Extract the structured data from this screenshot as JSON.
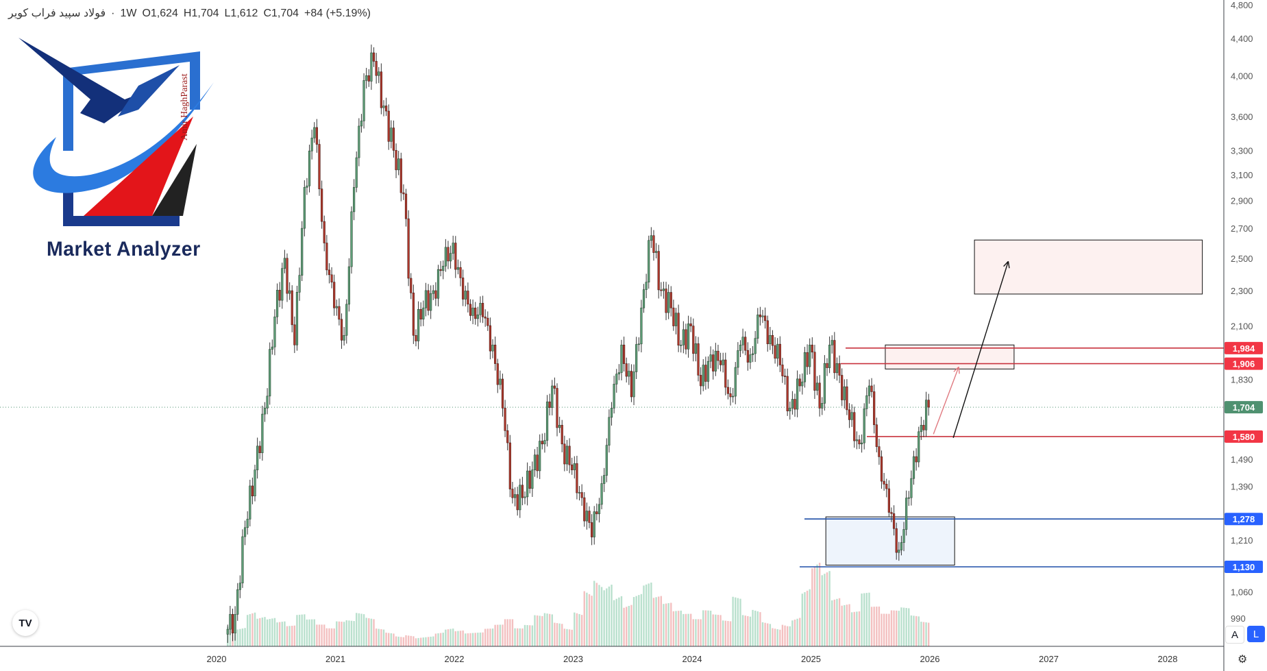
{
  "header": {
    "symbol": "فولاد سپید فراب کویر",
    "separator": "·",
    "interval": "1W",
    "open": "O1,624",
    "high": "H1,704",
    "low": "L1,612",
    "close": "C1,704",
    "change": "+84 (+5.19%)"
  },
  "logo": {
    "name": "Market Analyzer",
    "signature": "Amir HaghParast"
  },
  "tv_logo": "TV",
  "axis_buttons": {
    "auto": "A",
    "log": "L"
  },
  "settings_icon": "gear-icon",
  "colors": {
    "up": "#5e9e78",
    "down": "#b23a2e",
    "red_level": "#f23645",
    "blue_level": "#2962ff",
    "last_price": "#4f9170",
    "volume_up": "#a8d8c0",
    "volume_down": "#f0b0b0"
  },
  "chart_data": {
    "type": "candlestick",
    "scale": "log",
    "interval": "1W",
    "ylim": [
      930,
      4850
    ],
    "y_ticks": [
      "4,800",
      "4,400",
      "4,000",
      "3,600",
      "3,300",
      "3,100",
      "2,900",
      "2,700",
      "2,500",
      "2,300",
      "2,100",
      "1,830",
      "1,490",
      "1,390",
      "1,210",
      "1,060",
      "990"
    ],
    "x_ticks": [
      "2020",
      "2021",
      "2022",
      "2023",
      "2024",
      "2025",
      "2026",
      "2027",
      "2028"
    ],
    "first_open": 950,
    "monthly_closes": {
      "start": "2020-02",
      "values": [
        1000,
        1250,
        1450,
        1700,
        2150,
        2500,
        2000,
        3000,
        3500,
        2600,
        2200,
        2050,
        3000,
        3950,
        4150,
        3700,
        3300,
        2950,
        2050,
        2200,
        2300,
        2450,
        2600,
        2250,
        2200,
        2150,
        2000,
        1700,
        1350,
        1350,
        1450,
        1550,
        1800,
        1550,
        1450,
        1350,
        1220,
        1400,
        1700,
        2000,
        1750,
        2200,
        2650,
        2300,
        2200,
        2000,
        2100,
        1800,
        1950,
        1900,
        1750,
        2000,
        1950,
        2150,
        2050,
        1900,
        1700,
        1800,
        2000,
        1700,
        2000,
        1850,
        1650,
        1550,
        1800,
        1500,
        1300,
        1180,
        1350,
        1600,
        1704
      ]
    },
    "monthly_volume_relative": [
      20,
      15,
      25,
      20,
      18,
      15,
      12,
      18,
      15,
      12,
      10,
      14,
      15,
      20,
      18,
      12,
      10,
      8,
      10,
      8,
      8,
      10,
      12,
      10,
      8,
      8,
      10,
      12,
      15,
      10,
      12,
      18,
      20,
      15,
      12,
      25,
      45,
      60,
      55,
      40,
      30,
      35,
      40,
      30,
      25,
      20,
      18,
      15,
      20,
      18,
      15,
      30,
      20,
      25,
      18,
      15,
      20,
      25,
      45,
      60,
      50,
      30,
      25,
      20,
      30,
      22,
      18,
      20,
      22,
      18,
      15
    ],
    "last_price": {
      "value": 1704,
      "label": "1,704"
    },
    "levels": [
      {
        "value": 1984,
        "label": "1,984",
        "color": "red"
      },
      {
        "value": 1906,
        "label": "1,906",
        "color": "red"
      },
      {
        "value": 1580,
        "label": "1,580",
        "color": "red"
      },
      {
        "value": 1278,
        "label": "1,278",
        "color": "blue"
      },
      {
        "value": 1130,
        "label": "1,130",
        "color": "blue"
      }
    ],
    "zones": [
      {
        "name": "target-zone-upper",
        "from": "2026-05",
        "to": "2028-04",
        "low": 2280,
        "high": 2620
      },
      {
        "name": "target-zone-middle",
        "from": "2025-08",
        "to": "2026-09",
        "low": 1880,
        "high": 2000
      },
      {
        "name": "support-zone",
        "from": "2025-02",
        "to": "2026-03",
        "low": 1135,
        "high": 1285
      }
    ],
    "arrows": [
      {
        "name": "arrow-to-middle-zone",
        "from": [
          "2026-01",
          1590
        ],
        "to": [
          "2026-03",
          1890
        ],
        "color": "red"
      },
      {
        "name": "arrow-to-upper-zone",
        "from": [
          "2026-03",
          1575
        ],
        "to": [
          "2026-08",
          2480
        ],
        "color": "black"
      }
    ]
  }
}
